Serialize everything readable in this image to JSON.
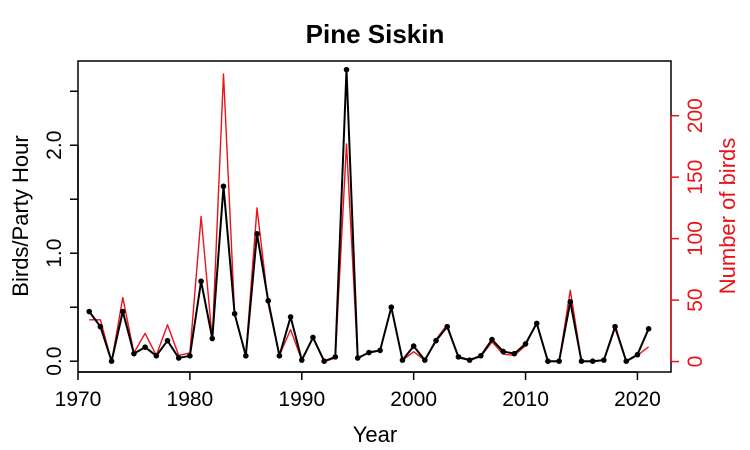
{
  "chart_data": {
    "type": "line",
    "title": "Pine Siskin",
    "xlabel": "Year",
    "ylabel": "Birds/Party Hour",
    "y2label": "Number of birds",
    "xlim": [
      1970,
      2023
    ],
    "ylim": [
      -0.1,
      2.78
    ],
    "y2lim": [
      -8.5,
      244.5
    ],
    "x_ticks": [
      1970,
      1980,
      1990,
      2000,
      2010,
      2020
    ],
    "x_tick_labels": [
      "1970",
      "1980",
      "1990",
      "2000",
      "2010",
      "2020"
    ],
    "y_ticks": [
      0.0,
      1.0,
      2.0
    ],
    "y_tick_labels": [
      "0.0",
      "1.0",
      "2.0"
    ],
    "y2_ticks": [
      0,
      50,
      100,
      150,
      200
    ],
    "y2_tick_labels": [
      "0",
      "50",
      "100",
      "150",
      "200"
    ],
    "grid": false,
    "series": [
      {
        "name": "Birds/Party Hour",
        "axis": "left",
        "color": "#000000",
        "markers": true,
        "x": [
          1971,
          1972,
          1973,
          1974,
          1975,
          1976,
          1977,
          1978,
          1979,
          1980,
          1981,
          1982,
          1983,
          1984,
          1985,
          1986,
          1987,
          1988,
          1989,
          1990,
          1991,
          1992,
          1993,
          1994,
          1995,
          1996,
          1997,
          1998,
          1999,
          2000,
          2001,
          2002,
          2003,
          2004,
          2005,
          2006,
          2007,
          2008,
          2009,
          2010,
          2011,
          2012,
          2013,
          2014,
          2015,
          2016,
          2017,
          2018,
          2019,
          2020,
          2021
        ],
        "values": [
          0.46,
          0.32,
          0.0,
          0.46,
          0.07,
          0.13,
          0.05,
          0.19,
          0.03,
          0.05,
          0.74,
          0.21,
          1.62,
          0.44,
          0.05,
          1.18,
          0.56,
          0.05,
          0.41,
          0.01,
          0.22,
          0.0,
          0.04,
          2.7,
          0.03,
          0.08,
          0.1,
          0.5,
          0.01,
          0.14,
          0.01,
          0.19,
          0.32,
          0.04,
          0.01,
          0.05,
          0.2,
          0.09,
          0.07,
          0.16,
          0.35,
          0.0,
          0.0,
          0.55,
          0.0,
          0.0,
          0.01,
          0.32,
          0.0,
          0.06,
          0.3
        ]
      },
      {
        "name": "Number of birds",
        "axis": "right",
        "color": "#e8141a",
        "markers": false,
        "x": [
          1971,
          1972,
          1973,
          1974,
          1975,
          1976,
          1977,
          1978,
          1979,
          1980,
          1981,
          1982,
          1983,
          1984,
          1985,
          1986,
          1987,
          1988,
          1989,
          1990,
          1991,
          1992,
          1993,
          1994,
          1995,
          1996,
          1997,
          1998,
          1999,
          2000,
          2001,
          2002,
          2003,
          2004,
          2005,
          2006,
          2007,
          2008,
          2009,
          2010,
          2011,
          2012,
          2013,
          2014,
          2015,
          2016,
          2017,
          2018,
          2019,
          2020,
          2021
        ],
        "values": [
          34,
          34,
          0,
          52,
          7,
          23,
          5,
          30,
          5,
          7,
          118,
          18,
          234,
          39,
          5,
          125,
          47,
          5,
          26,
          1,
          19,
          0,
          3,
          177,
          2,
          8,
          9,
          44,
          1,
          8,
          1,
          18,
          30,
          3,
          1,
          4,
          16,
          6,
          5,
          13,
          32,
          0,
          0,
          58,
          0,
          0,
          1,
          27,
          0,
          5,
          12
        ]
      }
    ]
  }
}
